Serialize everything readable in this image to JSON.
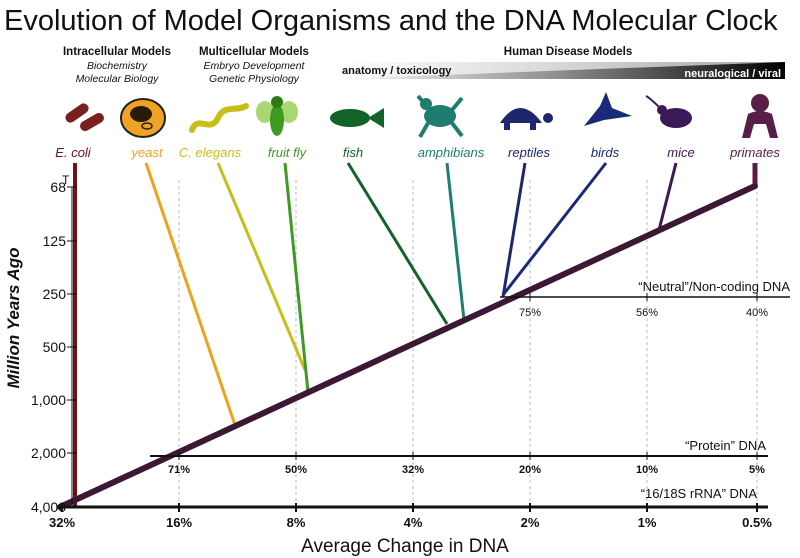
{
  "title": "Evolution of Model Organisms and the DNA Molecular Clock",
  "groups": [
    {
      "title": "Intracellular Models",
      "lines": [
        "Biochemistry",
        "Molecular Biology"
      ]
    },
    {
      "title": "Multicellular Models",
      "lines": [
        "Embryo Development",
        "Genetic Physiology"
      ]
    },
    {
      "title": "Human Disease Models",
      "lines": []
    }
  ],
  "gradient_labels": {
    "left": "anatomy / toxicology",
    "right": "neuralogical / viral"
  },
  "organisms": [
    {
      "name": "E. coli",
      "color": "#6b1416",
      "icon": "bacteria-icon"
    },
    {
      "name": "yeast",
      "color": "#efa21e",
      "icon": "yeast-cell-icon"
    },
    {
      "name": "C. elegans",
      "color": "#c9bd1a",
      "icon": "worm-icon"
    },
    {
      "name": "fruit fly",
      "color": "#3f9a22",
      "icon": "fly-icon"
    },
    {
      "name": "fish",
      "color": "#13622a",
      "icon": "fish-icon"
    },
    {
      "name": "amphibians",
      "color": "#1f7d6f",
      "icon": "frog-icon"
    },
    {
      "name": "reptiles",
      "color": "#1e2670",
      "icon": "turtle-icon"
    },
    {
      "name": "birds",
      "color": "#1a2a78",
      "icon": "bird-icon"
    },
    {
      "name": "mice",
      "color": "#3b1956",
      "icon": "mouse-icon"
    },
    {
      "name": "primates",
      "color": "#581e47",
      "icon": "primate-icon"
    }
  ],
  "y_axis": {
    "label": "Million Years Ago",
    "ticks": [
      "68",
      "125",
      "250",
      "500",
      "1,000",
      "2,000",
      "4,000"
    ]
  },
  "x_axis": {
    "label": "Average Change in DNA",
    "ticks": [
      "32%",
      "16%",
      "8%",
      "4%",
      "2%",
      "1%",
      "0.5%"
    ]
  },
  "scales": [
    {
      "label": "“Neutral”/Non-coding DNA",
      "ticks": [
        "75%",
        "56%",
        "40%"
      ]
    },
    {
      "label": "“Protein” DNA",
      "ticks": [
        "71%",
        "50%",
        "32%",
        "20%",
        "10%",
        "5%"
      ]
    },
    {
      "label": "“16/18S rRNA” DNA",
      "ticks": []
    }
  ],
  "colors": {
    "trunk": "#3b1834",
    "axis": "#111111",
    "grid": "#bbbbbb"
  }
}
